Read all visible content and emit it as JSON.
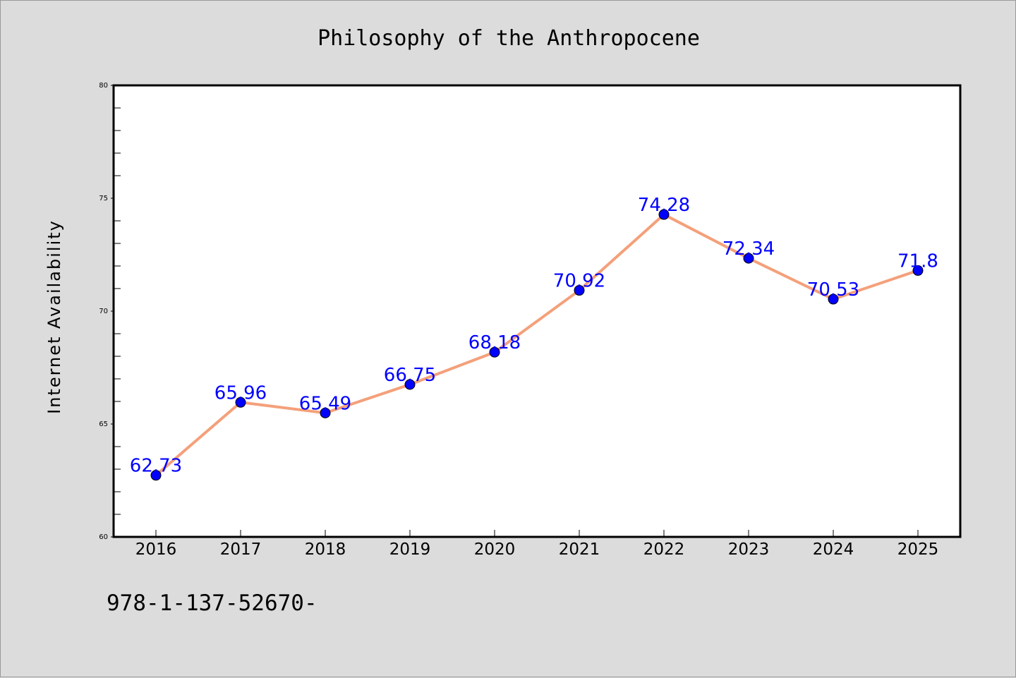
{
  "chart_data": {
    "type": "line",
    "title": "Philosophy of the Anthropocene",
    "xlabel": "",
    "ylabel": "Internet Availability",
    "categories": [
      "2016",
      "2017",
      "2018",
      "2019",
      "2020",
      "2021",
      "2022",
      "2023",
      "2024",
      "2025"
    ],
    "series": [
      {
        "values": [
          62.73,
          65.96,
          65.49,
          66.75,
          68.18,
          70.92,
          74.28,
          72.34,
          70.53,
          71.8
        ],
        "data_labels": [
          "62.73",
          "65.96",
          "65.49",
          "66.75",
          "68.18",
          "70.92",
          "74.28",
          "72.34",
          "70.53",
          "71.8"
        ],
        "line_color": "#f4a07a",
        "marker_color": "#0000ff"
      }
    ],
    "ylim": [
      60,
      80
    ],
    "yticks": [
      "60",
      "65",
      "70",
      "75",
      "80"
    ],
    "grid": false,
    "legend": "none"
  },
  "footer": {
    "text": "978-1-137-52670-"
  },
  "colors": {
    "background": "#dcdcdc",
    "plot_background": "#ffffff",
    "label_color": "#0000ff"
  }
}
